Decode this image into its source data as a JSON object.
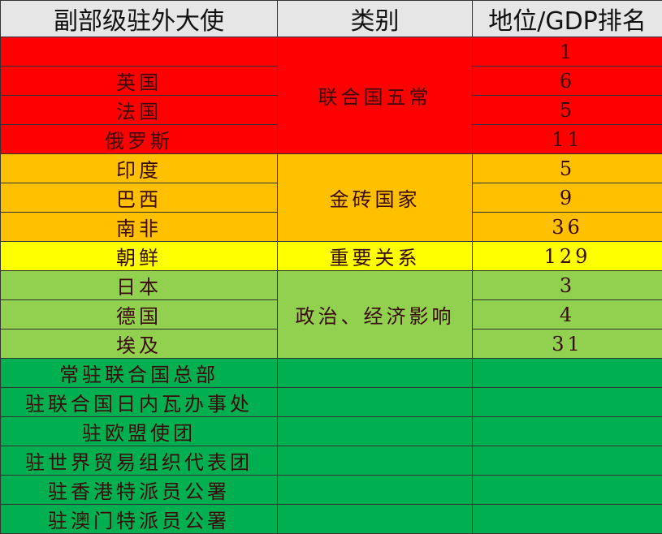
{
  "headers": [
    "副部级驻外大使",
    "类别",
    "地位/GDP排名"
  ],
  "colors": {
    "red": "#ff0000",
    "orange": "#ffc000",
    "yellow": "#ffff00",
    "light_green": "#92d050",
    "green": "#00b050",
    "header": "#e6e6e6"
  },
  "groups": {
    "un_p5": "联合国五常",
    "brics": "金砖国家",
    "important": "重要关系",
    "influence": "政治、经济影响"
  },
  "rows": [
    {
      "name": "",
      "rank": "1"
    },
    {
      "name": "英国",
      "rank": "6"
    },
    {
      "name": "法国",
      "rank": "5"
    },
    {
      "name": "俄罗斯",
      "rank": "11"
    },
    {
      "name": "印度",
      "rank": "5"
    },
    {
      "name": "巴西",
      "rank": "9"
    },
    {
      "name": "南非",
      "rank": "36"
    },
    {
      "name": "朝鲜",
      "rank": "129"
    },
    {
      "name": "日本",
      "rank": "3"
    },
    {
      "name": "德国",
      "rank": "4"
    },
    {
      "name": "埃及",
      "rank": "31"
    },
    {
      "name": "常驻联合国总部",
      "rank": ""
    },
    {
      "name": "驻联合国日内瓦办事处",
      "rank": ""
    },
    {
      "name": "驻欧盟使团",
      "rank": ""
    },
    {
      "name": "驻世界贸易组织代表团",
      "rank": ""
    },
    {
      "name": "驻香港特派员公署",
      "rank": ""
    },
    {
      "name": "驻澳门特派员公署",
      "rank": ""
    }
  ]
}
